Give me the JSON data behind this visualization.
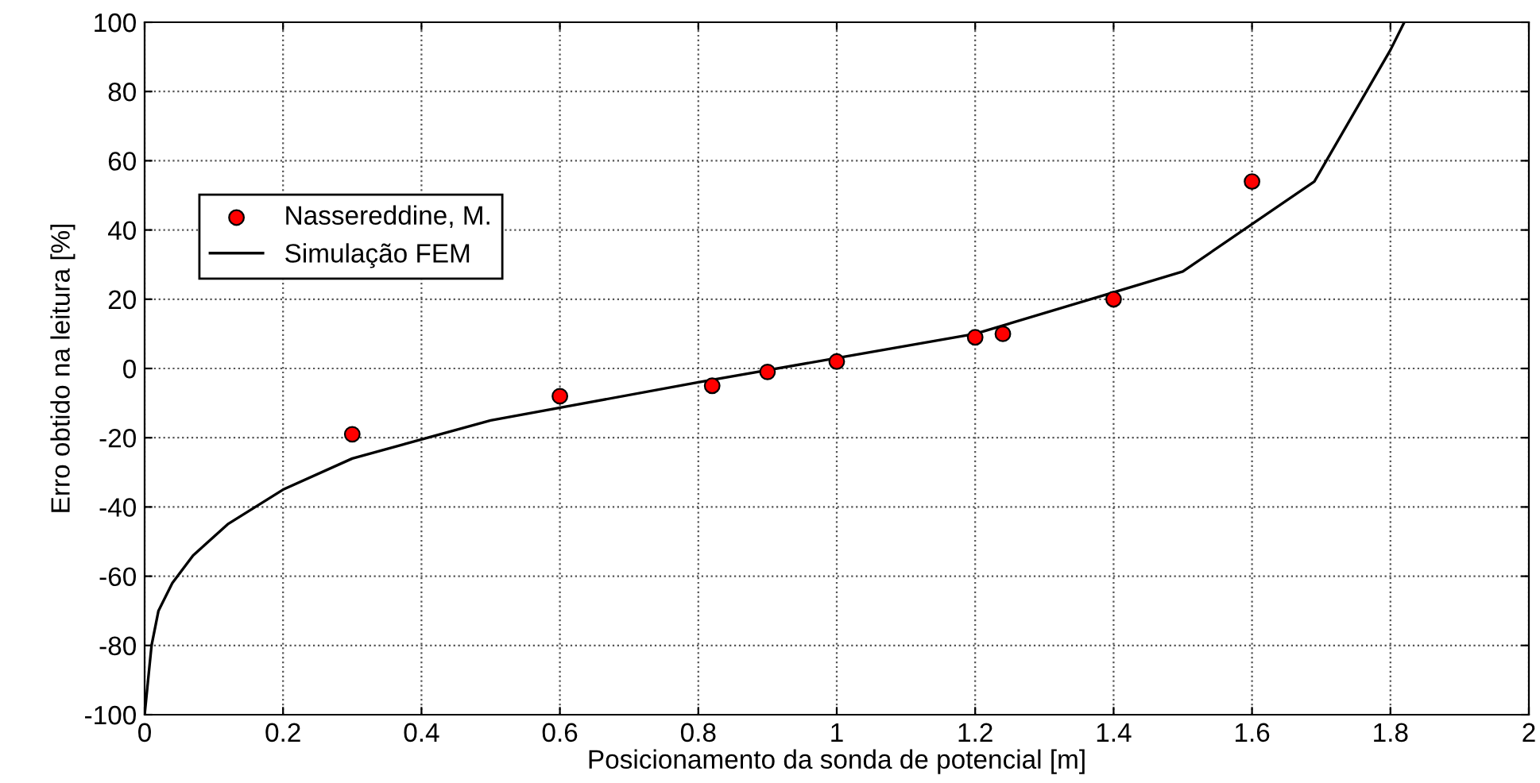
{
  "chart_data": {
    "type": "line",
    "xlabel": "Posicionamento da sonda de potencial [m]",
    "ylabel": "Erro obtido na leitura [%]",
    "xlim": [
      0,
      2
    ],
    "ylim": [
      -100,
      100
    ],
    "xticks": [
      0,
      0.2,
      0.4,
      0.6,
      0.8,
      1,
      1.2,
      1.4,
      1.6,
      1.8,
      2
    ],
    "yticks": [
      -100,
      -80,
      -60,
      -40,
      -20,
      0,
      20,
      40,
      60,
      80,
      100
    ],
    "grid": true,
    "legend": "top left",
    "series": [
      {
        "name": "Nassereddine, M.",
        "type": "scatter",
        "color": "#ff0000",
        "marker": "circle",
        "x": [
          0.3,
          0.6,
          0.82,
          0.9,
          1.0,
          1.2,
          1.24,
          1.4,
          1.6
        ],
        "values": [
          -19,
          -8,
          -5,
          -1,
          2,
          9,
          10,
          20,
          54
        ]
      },
      {
        "name": "Simulação FEM",
        "color": "#000000",
        "line_style": "solid",
        "x": [
          0,
          0.005,
          0.01,
          0.02,
          0.04,
          0.07,
          0.12,
          0.2,
          0.3,
          0.5,
          0.8,
          1.0,
          1.2,
          1.4,
          1.5,
          1.69,
          1.8,
          1.82
        ],
        "values": [
          -100,
          -90,
          -80,
          -70,
          -62,
          -54,
          -45,
          -35,
          -26,
          -15,
          -4,
          3,
          10,
          22,
          28,
          54,
          92,
          100
        ]
      }
    ]
  }
}
